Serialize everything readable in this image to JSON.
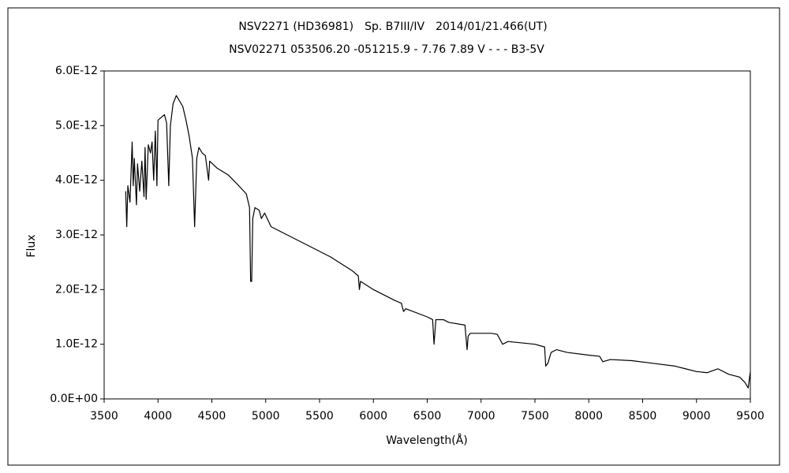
{
  "chart_data": {
    "type": "line",
    "title": "NSV2271 (HD36981)　Sp. B7III/IV　2014/01/21.466(UT)",
    "subtitle": "NSV02271 053506.20 -051215.9 - 7.76 7.89 V - - - B3-5V",
    "xlabel": "Wavelength(Å)",
    "ylabel": "Flux",
    "color": "#000000",
    "grid": false,
    "xlim": [
      3500,
      9500
    ],
    "xticks": [
      3500,
      4000,
      4500,
      5000,
      5500,
      6000,
      6500,
      7000,
      7500,
      8000,
      8500,
      9000,
      9500
    ],
    "ylim": [
      0,
      6e-12
    ],
    "yticks": [
      {
        "value": 0,
        "label": "0.0E+00"
      },
      {
        "value": 1e-12,
        "label": "1.0E-12"
      },
      {
        "value": 2e-12,
        "label": "2.0E-12"
      },
      {
        "value": 3e-12,
        "label": "3.0E-12"
      },
      {
        "value": 4e-12,
        "label": "4.0E-12"
      },
      {
        "value": 5e-12,
        "label": "5.0E-12"
      },
      {
        "value": 6e-12,
        "label": "6.0E-12"
      }
    ],
    "x": [
      3700,
      3710,
      3720,
      3740,
      3760,
      3770,
      3780,
      3800,
      3810,
      3830,
      3850,
      3870,
      3880,
      3890,
      3910,
      3930,
      3945,
      3960,
      3975,
      3990,
      4000,
      4030,
      4060,
      4080,
      4100,
      4115,
      4140,
      4170,
      4200,
      4230,
      4260,
      4290,
      4320,
      4340,
      4360,
      4380,
      4410,
      4440,
      4470,
      4480,
      4550,
      4650,
      4750,
      4820,
      4850,
      4860,
      4870,
      4880,
      4900,
      4940,
      4960,
      4990,
      5050,
      5200,
      5400,
      5600,
      5800,
      5860,
      5870,
      5880,
      6000,
      6200,
      6260,
      6280,
      6300,
      6500,
      6550,
      6563,
      6580,
      6650,
      6700,
      6850,
      6870,
      6880,
      6900,
      7100,
      7150,
      7200,
      7250,
      7500,
      7590,
      7600,
      7620,
      7650,
      7700,
      7800,
      8000,
      8100,
      8130,
      8200,
      8400,
      8600,
      8800,
      8900,
      9000,
      9100,
      9200,
      9300,
      9400,
      9450,
      9480,
      9500
    ],
    "values": [
      3.8e-12,
      3.15e-12,
      3.9e-12,
      3.6e-12,
      4.7e-12,
      3.9e-12,
      4.4e-12,
      3.55e-12,
      4.3e-12,
      3.8e-12,
      4.35e-12,
      3.7e-12,
      4.6e-12,
      3.65e-12,
      4.65e-12,
      4.5e-12,
      4.7e-12,
      4e-12,
      4.9e-12,
      3.9e-12,
      5.1e-12,
      5.15e-12,
      5.2e-12,
      5.05e-12,
      3.9e-12,
      5e-12,
      5.4e-12,
      5.55e-12,
      5.45e-12,
      5.35e-12,
      5.1e-12,
      4.8e-12,
      4.4e-12,
      3.15e-12,
      4.4e-12,
      4.6e-12,
      4.5e-12,
      4.45e-12,
      4e-12,
      4.35e-12,
      4.22e-12,
      4.1e-12,
      3.9e-12,
      3.75e-12,
      3.5e-12,
      2.15e-12,
      2.15e-12,
      3.3e-12,
      3.5e-12,
      3.45e-12,
      3.3e-12,
      3.4e-12,
      3.15e-12,
      3e-12,
      2.8e-12,
      2.6e-12,
      2.35e-12,
      2.25e-12,
      2e-12,
      2.15e-12,
      2e-12,
      1.8e-12,
      1.75e-12,
      1.6e-12,
      1.65e-12,
      1.5e-12,
      1.45e-12,
      1e-12,
      1.45e-12,
      1.45e-12,
      1.4e-12,
      1.35e-12,
      9e-13,
      1.15e-12,
      1.2e-12,
      1.2e-12,
      1.18e-12,
      1e-12,
      1.05e-12,
      1e-12,
      9.5e-13,
      6e-13,
      6.5e-13,
      8.5e-13,
      9e-13,
      8.5e-13,
      8e-13,
      7.8e-13,
      6.8e-13,
      7.2e-13,
      7e-13,
      6.5e-13,
      6e-13,
      5.5e-13,
      5e-13,
      4.8e-13,
      5.5e-13,
      4.5e-13,
      4e-13,
      3e-13,
      2e-13,
      5e-13
    ]
  }
}
